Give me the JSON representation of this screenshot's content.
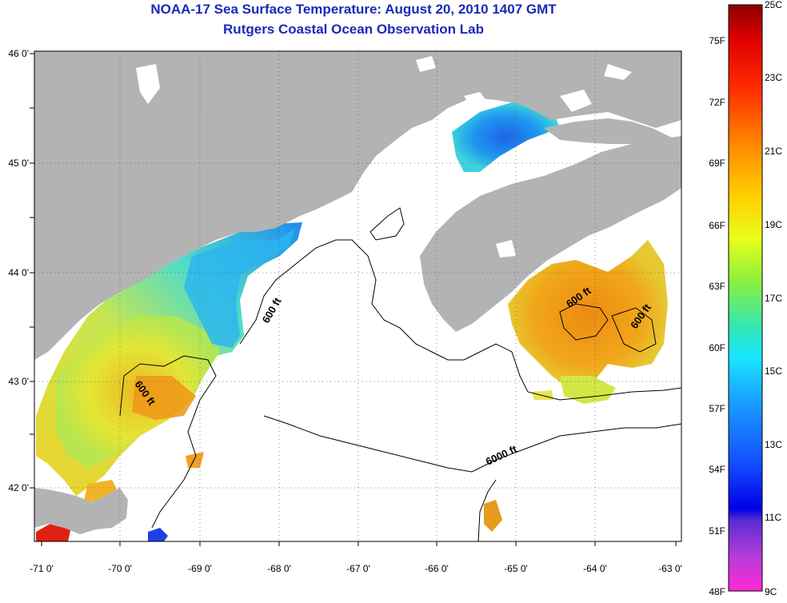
{
  "title": {
    "line1": "NOAA-17 Sea Surface Temperature:  August 20, 2010 1407 GMT",
    "line2": "Rutgers Coastal Ocean Observation Lab"
  },
  "axes": {
    "longitude_labels": [
      "-71 0'",
      "-70 0'",
      "-69 0'",
      "-68 0'",
      "-67 0'",
      "-66 0'",
      "-65 0'",
      "-64 0'",
      "-63 0'"
    ],
    "latitude_labels": [
      "46 0'",
      "45 0'",
      "44 0'",
      "43 0'",
      "42 0'"
    ],
    "lon_range": [
      -71,
      -63
    ],
    "lat_range": [
      41.5,
      46
    ]
  },
  "isobath_labels": [
    "600 ft",
    "600 ft",
    "600 ft",
    "600 ft",
    "6000 ft"
  ],
  "colorbar": {
    "fahrenheit": [
      "75F",
      "72F",
      "69F",
      "66F",
      "63F",
      "60F",
      "57F",
      "54F",
      "51F",
      "48F"
    ],
    "celsius": [
      "25C",
      "23C",
      "21C",
      "19C",
      "17C",
      "15C",
      "13C",
      "11C",
      "9C"
    ],
    "range_c": [
      9,
      25
    ]
  },
  "colors": {
    "land": "#b3b3b3",
    "no_data": "#ffffff",
    "title": "#1a2ab8"
  }
}
